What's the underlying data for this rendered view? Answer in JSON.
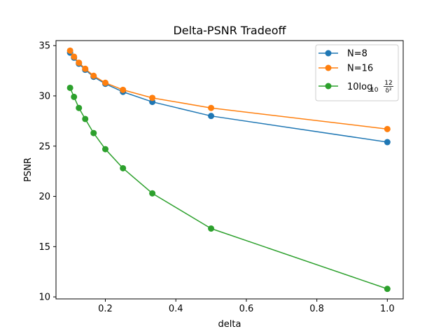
{
  "chart_data": {
    "type": "line",
    "title": "Delta-PSNR Tradeoff",
    "xlabel": "delta",
    "ylabel": "PSNR",
    "xlim": [
      0.06,
      1.045
    ],
    "ylim": [
      9.8,
      35.5
    ],
    "x_ticks": [
      0.2,
      0.4,
      0.6,
      0.8,
      1.0
    ],
    "x_tick_labels": [
      "0.2",
      "0.4",
      "0.6",
      "0.8",
      "1.0"
    ],
    "y_ticks": [
      10,
      15,
      20,
      25,
      30,
      35
    ],
    "y_tick_labels": [
      "10",
      "15",
      "20",
      "25",
      "30",
      "35"
    ],
    "grid": false,
    "legend_position": "top-right",
    "x": [
      0.1,
      0.1111,
      0.125,
      0.1429,
      0.1667,
      0.2,
      0.25,
      0.3333,
      0.5,
      1.0
    ],
    "series": [
      {
        "name": "N=8",
        "color": "#1f77b4",
        "values": [
          34.3,
          33.8,
          33.2,
          32.6,
          31.9,
          31.2,
          30.4,
          29.4,
          28.0,
          25.4
        ]
      },
      {
        "name": "N=16",
        "color": "#ff7f0e",
        "values": [
          34.5,
          33.9,
          33.3,
          32.7,
          32.0,
          31.3,
          30.6,
          29.8,
          28.8,
          26.7
        ]
      },
      {
        "name_prefix": "10log",
        "name_sub": "10",
        "name_frac_num": "12",
        "name_frac_den": "δ²",
        "color": "#2ca02c",
        "values": [
          30.8,
          29.9,
          28.8,
          27.7,
          26.3,
          24.7,
          22.8,
          20.3,
          16.8,
          10.8
        ]
      }
    ]
  }
}
